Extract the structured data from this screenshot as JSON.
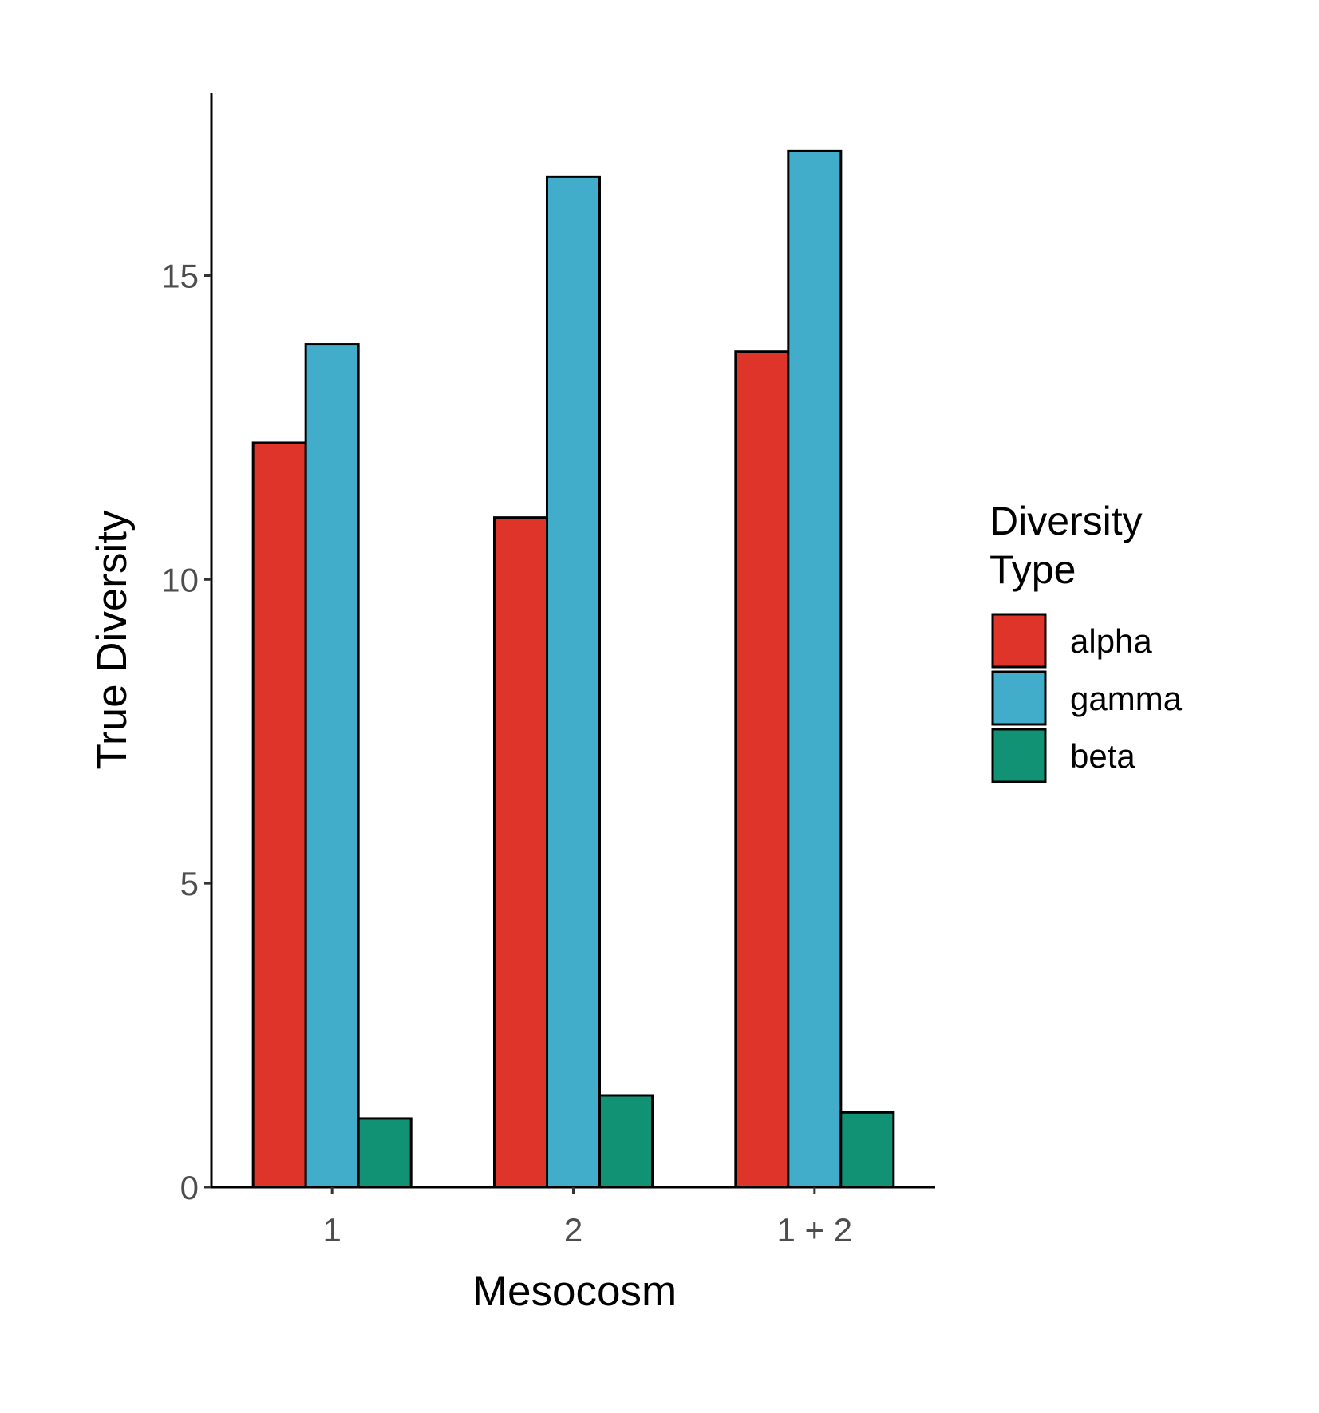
{
  "chart_data": {
    "type": "bar",
    "title": "",
    "xlabel": "Mesocosm",
    "ylabel": "True Diversity",
    "categories": [
      "1",
      "2",
      "1 + 2"
    ],
    "series": [
      {
        "name": "alpha",
        "color": "#DE342A",
        "values": [
          12.25,
          11.02,
          13.75
        ]
      },
      {
        "name": "gamma",
        "color": "#42ACCB",
        "values": [
          13.87,
          16.63,
          17.05
        ]
      },
      {
        "name": "beta",
        "color": "#129275",
        "values": [
          1.13,
          1.51,
          1.23
        ]
      }
    ],
    "ylim": [
      0,
      18
    ],
    "yticks": [
      0,
      5,
      10,
      15
    ],
    "ytick_labels": [
      "0",
      "5",
      "10",
      "15"
    ],
    "grid": false,
    "legend": {
      "title_lines": [
        "Diversity",
        "Type"
      ],
      "placement": "right"
    }
  }
}
